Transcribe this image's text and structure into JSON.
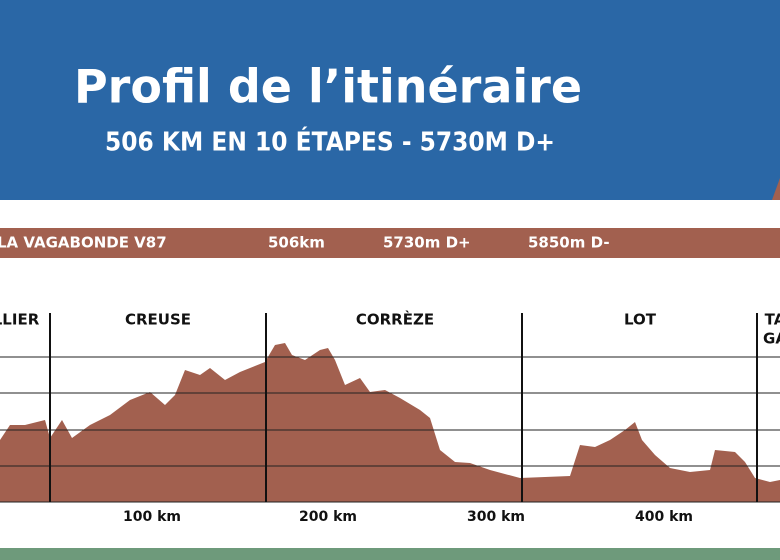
{
  "header": {
    "title": "Profil de l’itinéraire",
    "subtitle": "506 KM EN 10 ÉTAPES - 5730M D+"
  },
  "route_bar": {
    "name": "LA VAGABONDE V87",
    "distance": "506km",
    "gain": "5730m D+",
    "loss": "5850m D-"
  },
  "departments": [
    "LLIER",
    "CREUSE",
    "CORRÈZE",
    "LOT",
    "TA",
    "GA"
  ],
  "distance_labels": [
    "100 km",
    "200 km",
    "300 km",
    "400 km"
  ]
}
